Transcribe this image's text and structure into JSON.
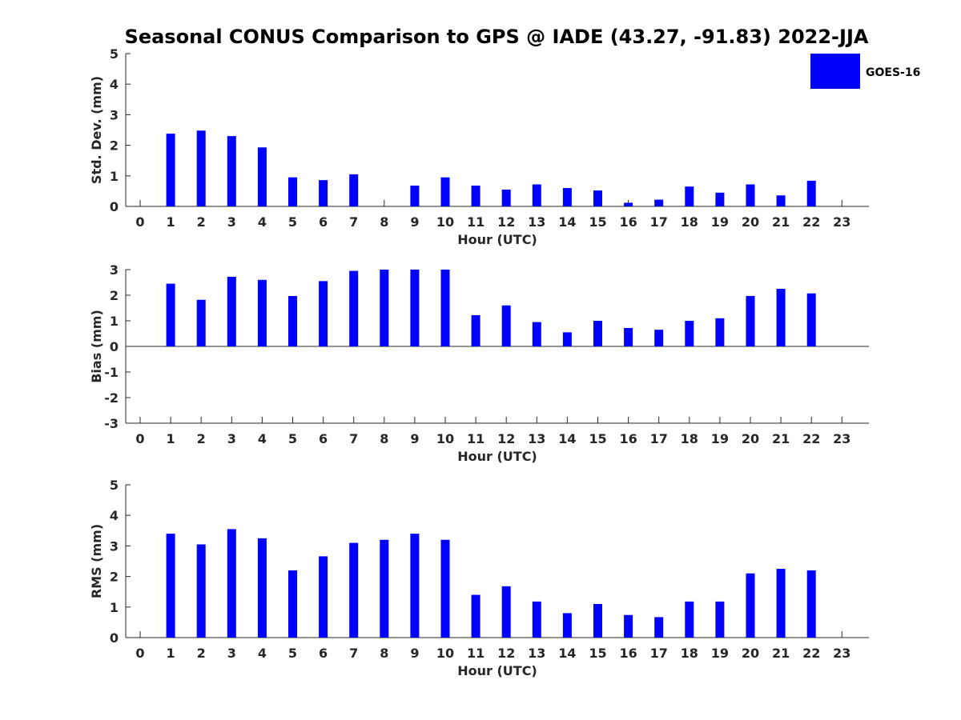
{
  "title": "Seasonal CONUS Comparison to GPS @ IADE (43.27, -91.83) 2022-JJA",
  "legend": {
    "label": "GOES-16",
    "color": "#0000ff",
    "placement": "top-right"
  },
  "chart_data": [
    {
      "type": "bar",
      "ylabel": "Std. Dev. (mm)",
      "xlabel": "Hour (UTC)",
      "ylim": [
        0,
        5
      ],
      "yticks": [
        0,
        1,
        2,
        3,
        4,
        5
      ],
      "categories": [
        0,
        1,
        2,
        3,
        4,
        5,
        6,
        7,
        8,
        9,
        10,
        11,
        12,
        13,
        14,
        15,
        16,
        17,
        18,
        19,
        20,
        21,
        22,
        23
      ],
      "series": [
        {
          "name": "GOES-16",
          "values": [
            null,
            2.38,
            2.48,
            2.3,
            1.93,
            0.95,
            0.86,
            1.05,
            null,
            0.68,
            0.95,
            0.68,
            0.55,
            0.72,
            0.6,
            0.52,
            0.12,
            0.22,
            0.65,
            0.45,
            0.72,
            0.36,
            0.84,
            null
          ]
        }
      ]
    },
    {
      "type": "bar",
      "ylabel": "Bias (mm)",
      "xlabel": "Hour (UTC)",
      "ylim": [
        -3,
        3
      ],
      "yticks": [
        -3,
        -2,
        -1,
        0,
        1,
        2,
        3
      ],
      "categories": [
        0,
        1,
        2,
        3,
        4,
        5,
        6,
        7,
        8,
        9,
        10,
        11,
        12,
        13,
        14,
        15,
        16,
        17,
        18,
        19,
        20,
        21,
        22,
        23
      ],
      "series": [
        {
          "name": "GOES-16",
          "values": [
            null,
            2.45,
            1.82,
            2.72,
            2.6,
            1.97,
            2.55,
            2.95,
            3.0,
            3.0,
            3.0,
            1.22,
            1.6,
            0.95,
            0.55,
            1.0,
            0.72,
            0.65,
            1.0,
            1.1,
            1.97,
            2.25,
            2.07,
            null
          ]
        }
      ]
    },
    {
      "type": "bar",
      "ylabel": "RMS (mm)",
      "xlabel": "Hour (UTC)",
      "ylim": [
        0,
        5
      ],
      "yticks": [
        0,
        1,
        2,
        3,
        4,
        5
      ],
      "categories": [
        0,
        1,
        2,
        3,
        4,
        5,
        6,
        7,
        8,
        9,
        10,
        11,
        12,
        13,
        14,
        15,
        16,
        17,
        18,
        19,
        20,
        21,
        22,
        23
      ],
      "series": [
        {
          "name": "GOES-16",
          "values": [
            null,
            3.4,
            3.05,
            3.55,
            3.25,
            2.2,
            2.66,
            3.1,
            3.2,
            3.4,
            3.2,
            1.4,
            1.68,
            1.18,
            0.8,
            1.1,
            0.74,
            0.67,
            1.18,
            1.18,
            2.1,
            2.25,
            2.2,
            null
          ]
        }
      ]
    }
  ]
}
